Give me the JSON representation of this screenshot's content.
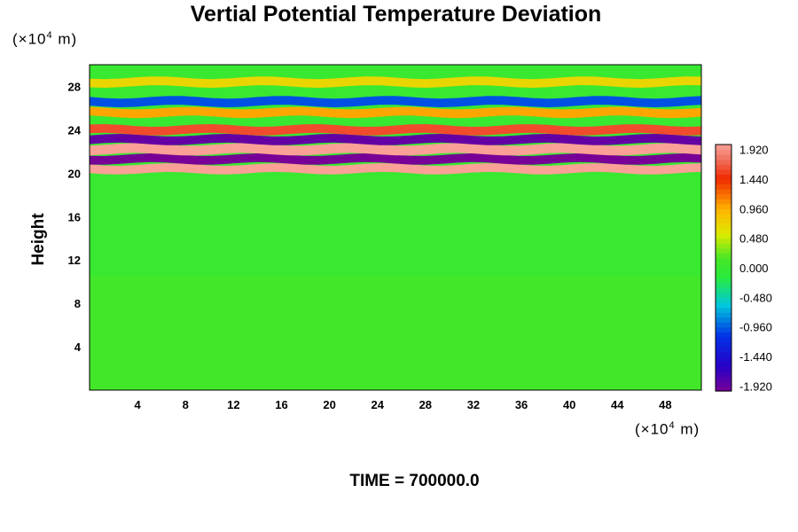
{
  "chart_data": {
    "type": "heatmap",
    "title": "Vertial Potential Temperature Deviation",
    "xlabel": "",
    "ylabel": "Height",
    "x_unit_prefix": "(×10",
    "x_unit_exp": "4",
    "x_unit_suffix": " m)",
    "y_unit_prefix": "(×10",
    "y_unit_exp": "4",
    "y_unit_suffix": " m)",
    "xlim": [
      0,
      51
    ],
    "ylim": [
      0,
      30
    ],
    "x_ticks": [
      "4",
      "8",
      "12",
      "16",
      "20",
      "24",
      "28",
      "32",
      "36",
      "40",
      "44",
      "48"
    ],
    "x_tick_values": [
      4,
      8,
      12,
      16,
      20,
      24,
      28,
      32,
      36,
      40,
      44,
      48
    ],
    "y_ticks": [
      "4",
      "8",
      "12",
      "16",
      "20",
      "24",
      "28"
    ],
    "y_tick_values": [
      4,
      8,
      12,
      16,
      20,
      24,
      28
    ],
    "colorbar": {
      "min": -2.0,
      "max": 2.0,
      "labels": [
        "1.920",
        "1.440",
        "0.960",
        "0.480",
        "0.000",
        "-0.480",
        "-0.960",
        "-1.440",
        "-1.920"
      ],
      "label_values": [
        1.92,
        1.44,
        0.96,
        0.48,
        0.0,
        -0.48,
        -0.96,
        -1.44,
        -1.92
      ],
      "levels": 50
    },
    "bands": [
      {
        "y_center": 20.4,
        "value": 2.0,
        "thickness": 0.8
      },
      {
        "y_center": 21.3,
        "value": -2.0,
        "thickness": 0.8
      },
      {
        "y_center": 22.2,
        "value": 2.0,
        "thickness": 0.9
      },
      {
        "y_center": 23.1,
        "value": -1.9,
        "thickness": 0.8
      },
      {
        "y_center": 24.0,
        "value": 1.6,
        "thickness": 0.8
      },
      {
        "y_center": 25.6,
        "value": 1.0,
        "thickness": 0.8
      },
      {
        "y_center": 26.6,
        "value": -1.0,
        "thickness": 0.8
      },
      {
        "y_center": 28.4,
        "value": 0.7,
        "thickness": 0.8
      }
    ]
  },
  "footer": {
    "time_label": "TIME = 700000.0"
  }
}
